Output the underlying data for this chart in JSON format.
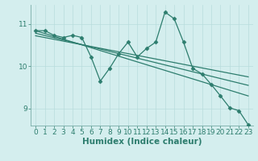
{
  "xlabel": "Humidex (Indice chaleur)",
  "ylabel": "",
  "bg_color": "#d4eeee",
  "line_color": "#2d7d6e",
  "xlim": [
    -0.5,
    23.5
  ],
  "ylim": [
    8.6,
    11.45
  ],
  "yticks": [
    9,
    10,
    11
  ],
  "xticks": [
    0,
    1,
    2,
    3,
    4,
    5,
    6,
    7,
    8,
    9,
    10,
    11,
    12,
    13,
    14,
    15,
    16,
    17,
    18,
    19,
    20,
    21,
    22,
    23
  ],
  "main_x": [
    0,
    1,
    2,
    3,
    4,
    5,
    6,
    7,
    8,
    9,
    10,
    11,
    12,
    13,
    14,
    15,
    16,
    17,
    18,
    19,
    20,
    21,
    22,
    23
  ],
  "main_y": [
    10.84,
    10.84,
    10.73,
    10.68,
    10.73,
    10.68,
    10.22,
    9.65,
    9.95,
    10.3,
    10.57,
    10.22,
    10.42,
    10.57,
    11.28,
    11.12,
    10.57,
    9.95,
    9.82,
    9.57,
    9.3,
    9.02,
    8.95,
    8.62
  ],
  "trend1_x": [
    0,
    23
  ],
  "trend1_y": [
    10.84,
    9.3
  ],
  "trend2_x": [
    0,
    23
  ],
  "trend2_y": [
    10.78,
    9.55
  ],
  "trend3_x": [
    0,
    23
  ],
  "trend3_y": [
    10.72,
    9.75
  ],
  "marker": "D",
  "marker_size": 2.5,
  "line_width": 0.9,
  "xlabel_fontsize": 7.5,
  "tick_fontsize": 6.5,
  "grid_color": "#b8dcdc",
  "grid_linewidth": 0.5,
  "spine_color": "#7aada8"
}
